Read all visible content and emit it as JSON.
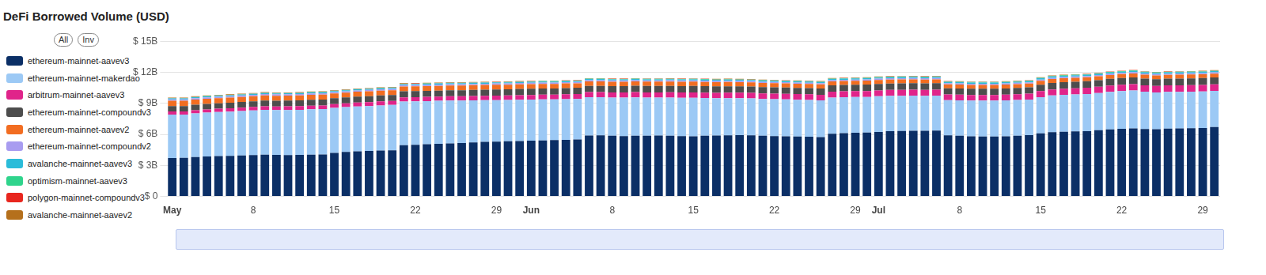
{
  "chart_data": {
    "type": "bar",
    "title": "DeFi Borrowed Volume (USD)",
    "stacked": true,
    "grid": true,
    "legend": "left",
    "categories": [
      "May",
      null,
      null,
      null,
      null,
      null,
      null,
      "8",
      null,
      null,
      null,
      null,
      null,
      null,
      "15",
      null,
      null,
      null,
      null,
      null,
      null,
      "22",
      null,
      null,
      null,
      null,
      null,
      null,
      "29",
      null,
      null,
      "Jun",
      null,
      null,
      null,
      null,
      null,
      null,
      "8",
      null,
      null,
      null,
      null,
      null,
      null,
      "15",
      null,
      null,
      null,
      null,
      null,
      null,
      "22",
      null,
      null,
      null,
      null,
      null,
      null,
      "29",
      null,
      "Jul",
      null,
      null,
      null,
      null,
      null,
      null,
      "8",
      null,
      null,
      null,
      null,
      null,
      null,
      "15",
      null,
      null,
      null,
      null,
      null,
      null,
      "22",
      null,
      null,
      null,
      null,
      null,
      null,
      "29",
      null
    ],
    "ylim": [
      0,
      15
    ],
    "yticks": [
      {
        "value": 0,
        "label": "$ 0"
      },
      {
        "value": 3,
        "label": "$ 3B"
      },
      {
        "value": 6,
        "label": "$ 6B"
      },
      {
        "value": 9,
        "label": "$ 9B"
      },
      {
        "value": 12,
        "label": "$ 12B"
      },
      {
        "value": 15,
        "label": "$ 15B"
      }
    ],
    "series": [
      {
        "name": "ethereum-mainnet-aavev3",
        "color": "#0b2f66",
        "values": [
          3.72,
          3.74,
          3.8,
          3.86,
          3.9,
          3.92,
          3.96,
          4.0,
          4.04,
          4.02,
          4.0,
          4.02,
          4.04,
          4.06,
          4.2,
          4.3,
          4.36,
          4.4,
          4.44,
          4.46,
          4.96,
          5.0,
          5.04,
          5.08,
          5.12,
          5.16,
          5.22,
          5.28,
          5.3,
          5.34,
          5.36,
          5.4,
          5.42,
          5.44,
          5.46,
          5.5,
          5.88,
          5.9,
          5.86,
          5.84,
          5.86,
          5.86,
          5.88,
          5.86,
          5.84,
          5.82,
          5.86,
          5.88,
          5.9,
          5.92,
          5.9,
          5.86,
          5.84,
          5.82,
          5.8,
          5.78,
          5.74,
          6.06,
          6.12,
          6.16,
          6.18,
          6.24,
          6.3,
          6.32,
          6.34,
          6.34,
          6.36,
          5.9,
          5.86,
          5.82,
          5.8,
          5.8,
          5.82,
          5.86,
          5.92,
          6.1,
          6.22,
          6.26,
          6.28,
          6.3,
          6.4,
          6.48,
          6.54,
          6.58,
          6.52,
          6.5,
          6.56,
          6.58,
          6.6,
          6.62,
          6.7
        ]
      },
      {
        "name": "ethereum-mainnet-makerdao",
        "color": "#9cc9f5",
        "values": [
          4.2,
          4.18,
          4.22,
          4.24,
          4.26,
          4.28,
          4.3,
          4.32,
          4.34,
          4.34,
          4.36,
          4.36,
          4.38,
          4.38,
          4.36,
          4.34,
          4.34,
          4.34,
          4.36,
          4.38,
          4.22,
          4.2,
          4.18,
          4.16,
          4.14,
          4.1,
          4.06,
          4.02,
          4.0,
          3.98,
          3.98,
          3.96,
          3.96,
          3.94,
          3.94,
          3.92,
          3.72,
          3.7,
          3.7,
          3.72,
          3.72,
          3.7,
          3.68,
          3.7,
          3.7,
          3.72,
          3.66,
          3.62,
          3.6,
          3.58,
          3.58,
          3.56,
          3.56,
          3.56,
          3.54,
          3.54,
          3.54,
          3.5,
          3.48,
          3.46,
          3.44,
          3.44,
          3.42,
          3.4,
          3.4,
          3.38,
          3.38,
          3.4,
          3.42,
          3.44,
          3.46,
          3.46,
          3.46,
          3.46,
          3.44,
          3.5,
          3.54,
          3.56,
          3.58,
          3.6,
          3.6,
          3.62,
          3.64,
          3.66,
          3.6,
          3.56,
          3.54,
          3.52,
          3.52,
          3.52,
          3.5
        ]
      },
      {
        "name": "arbitrum-mainnet-aavev3",
        "color": "#e0248a",
        "values": [
          0.3,
          0.3,
          0.31,
          0.31,
          0.32,
          0.32,
          0.33,
          0.33,
          0.34,
          0.34,
          0.35,
          0.35,
          0.36,
          0.36,
          0.37,
          0.37,
          0.38,
          0.38,
          0.39,
          0.39,
          0.4,
          0.4,
          0.41,
          0.41,
          0.42,
          0.42,
          0.43,
          0.43,
          0.44,
          0.44,
          0.45,
          0.45,
          0.46,
          0.46,
          0.47,
          0.47,
          0.48,
          0.48,
          0.49,
          0.49,
          0.5,
          0.5,
          0.5,
          0.51,
          0.51,
          0.52,
          0.52,
          0.52,
          0.53,
          0.53,
          0.53,
          0.54,
          0.54,
          0.54,
          0.55,
          0.55,
          0.55,
          0.56,
          0.56,
          0.56,
          0.57,
          0.57,
          0.57,
          0.58,
          0.58,
          0.58,
          0.58,
          0.56,
          0.56,
          0.55,
          0.55,
          0.55,
          0.56,
          0.56,
          0.57,
          0.58,
          0.58,
          0.59,
          0.59,
          0.6,
          0.6,
          0.61,
          0.61,
          0.62,
          0.62,
          0.62,
          0.63,
          0.63,
          0.63,
          0.64,
          0.64
        ]
      },
      {
        "name": "ethereum-mainnet-compoundv3",
        "color": "#4d4d4d",
        "values": [
          0.52,
          0.52,
          0.53,
          0.53,
          0.53,
          0.54,
          0.54,
          0.54,
          0.55,
          0.55,
          0.55,
          0.55,
          0.56,
          0.56,
          0.56,
          0.56,
          0.57,
          0.57,
          0.57,
          0.57,
          0.58,
          0.58,
          0.58,
          0.58,
          0.59,
          0.59,
          0.59,
          0.59,
          0.6,
          0.6,
          0.6,
          0.6,
          0.6,
          0.6,
          0.61,
          0.61,
          0.61,
          0.61,
          0.61,
          0.61,
          0.62,
          0.62,
          0.62,
          0.62,
          0.62,
          0.62,
          0.62,
          0.62,
          0.62,
          0.61,
          0.61,
          0.61,
          0.61,
          0.6,
          0.6,
          0.6,
          0.6,
          0.61,
          0.61,
          0.61,
          0.62,
          0.62,
          0.62,
          0.62,
          0.62,
          0.62,
          0.62,
          0.6,
          0.6,
          0.6,
          0.6,
          0.6,
          0.6,
          0.61,
          0.61,
          0.62,
          0.63,
          0.63,
          0.64,
          0.64,
          0.64,
          0.65,
          0.65,
          0.65,
          0.65,
          0.65,
          0.65,
          0.66,
          0.66,
          0.66,
          0.66
        ]
      },
      {
        "name": "ethereum-mainnet-aavev2",
        "color": "#f26d21",
        "values": [
          0.5,
          0.5,
          0.5,
          0.5,
          0.49,
          0.49,
          0.49,
          0.49,
          0.49,
          0.48,
          0.48,
          0.48,
          0.48,
          0.48,
          0.47,
          0.47,
          0.47,
          0.47,
          0.47,
          0.46,
          0.46,
          0.46,
          0.46,
          0.46,
          0.45,
          0.45,
          0.45,
          0.45,
          0.45,
          0.44,
          0.44,
          0.44,
          0.44,
          0.44,
          0.44,
          0.43,
          0.43,
          0.43,
          0.43,
          0.43,
          0.42,
          0.42,
          0.42,
          0.42,
          0.42,
          0.42,
          0.41,
          0.41,
          0.41,
          0.41,
          0.41,
          0.4,
          0.4,
          0.4,
          0.4,
          0.4,
          0.4,
          0.39,
          0.39,
          0.39,
          0.39,
          0.39,
          0.39,
          0.39,
          0.38,
          0.38,
          0.38,
          0.37,
          0.37,
          0.37,
          0.37,
          0.37,
          0.37,
          0.37,
          0.37,
          0.38,
          0.38,
          0.38,
          0.38,
          0.38,
          0.38,
          0.38,
          0.38,
          0.38,
          0.37,
          0.37,
          0.37,
          0.37,
          0.37,
          0.37,
          0.37
        ]
      },
      {
        "name": "ethereum-mainnet-compoundv2",
        "color": "#a89cf0",
        "values": [
          0.14,
          0.14,
          0.14,
          0.14,
          0.14,
          0.14,
          0.14,
          0.14,
          0.14,
          0.14,
          0.14,
          0.14,
          0.14,
          0.14,
          0.13,
          0.13,
          0.13,
          0.13,
          0.13,
          0.13,
          0.13,
          0.13,
          0.13,
          0.13,
          0.13,
          0.13,
          0.13,
          0.13,
          0.13,
          0.13,
          0.13,
          0.13,
          0.13,
          0.13,
          0.13,
          0.13,
          0.12,
          0.12,
          0.12,
          0.12,
          0.12,
          0.12,
          0.12,
          0.12,
          0.12,
          0.12,
          0.12,
          0.12,
          0.12,
          0.12,
          0.12,
          0.12,
          0.12,
          0.12,
          0.12,
          0.12,
          0.12,
          0.12,
          0.12,
          0.12,
          0.12,
          0.12,
          0.12,
          0.12,
          0.12,
          0.12,
          0.12,
          0.12,
          0.12,
          0.12,
          0.12,
          0.12,
          0.12,
          0.12,
          0.12,
          0.12,
          0.12,
          0.12,
          0.12,
          0.12,
          0.12,
          0.12,
          0.12,
          0.12,
          0.12,
          0.12,
          0.12,
          0.12,
          0.12,
          0.12,
          0.12
        ]
      },
      {
        "name": "avalanche-mainnet-aavev3",
        "color": "#2bbcd9",
        "values": [
          0.09,
          0.09,
          0.09,
          0.09,
          0.09,
          0.09,
          0.09,
          0.09,
          0.09,
          0.09,
          0.09,
          0.09,
          0.09,
          0.09,
          0.1,
          0.1,
          0.1,
          0.1,
          0.1,
          0.1,
          0.1,
          0.1,
          0.1,
          0.1,
          0.1,
          0.1,
          0.1,
          0.1,
          0.1,
          0.1,
          0.1,
          0.1,
          0.1,
          0.1,
          0.1,
          0.1,
          0.1,
          0.1,
          0.1,
          0.1,
          0.1,
          0.1,
          0.1,
          0.1,
          0.1,
          0.1,
          0.11,
          0.11,
          0.11,
          0.11,
          0.11,
          0.11,
          0.11,
          0.11,
          0.11,
          0.11,
          0.11,
          0.11,
          0.11,
          0.11,
          0.11,
          0.11,
          0.11,
          0.11,
          0.11,
          0.11,
          0.11,
          0.11,
          0.11,
          0.11,
          0.11,
          0.11,
          0.11,
          0.11,
          0.11,
          0.12,
          0.12,
          0.12,
          0.12,
          0.12,
          0.12,
          0.12,
          0.12,
          0.12,
          0.12,
          0.12,
          0.12,
          0.12,
          0.12,
          0.12,
          0.12
        ]
      },
      {
        "name": "optimism-mainnet-aavev3",
        "color": "#2fd48c",
        "values": [
          0.03,
          0.03,
          0.03,
          0.03,
          0.03,
          0.03,
          0.03,
          0.03,
          0.03,
          0.03,
          0.03,
          0.03,
          0.03,
          0.03,
          0.03,
          0.03,
          0.03,
          0.03,
          0.03,
          0.03,
          0.03,
          0.03,
          0.03,
          0.03,
          0.03,
          0.03,
          0.03,
          0.03,
          0.03,
          0.03,
          0.03,
          0.04,
          0.04,
          0.04,
          0.04,
          0.04,
          0.04,
          0.04,
          0.04,
          0.04,
          0.04,
          0.04,
          0.04,
          0.04,
          0.04,
          0.04,
          0.04,
          0.04,
          0.04,
          0.04,
          0.04,
          0.04,
          0.04,
          0.04,
          0.04,
          0.04,
          0.04,
          0.04,
          0.04,
          0.04,
          0.04,
          0.05,
          0.05,
          0.05,
          0.05,
          0.05,
          0.05,
          0.05,
          0.05,
          0.05,
          0.05,
          0.05,
          0.05,
          0.05,
          0.05,
          0.05,
          0.05,
          0.05,
          0.05,
          0.05,
          0.05,
          0.05,
          0.05,
          0.05,
          0.05,
          0.05,
          0.05,
          0.05,
          0.05,
          0.05,
          0.05
        ]
      },
      {
        "name": "polygon-mainnet-compoundv3",
        "color": "#e8261e",
        "values": [
          0.02,
          0.02,
          0.02,
          0.02,
          0.02,
          0.02,
          0.02,
          0.02,
          0.02,
          0.02,
          0.02,
          0.02,
          0.02,
          0.02,
          0.02,
          0.02,
          0.02,
          0.02,
          0.02,
          0.02,
          0.02,
          0.02,
          0.02,
          0.02,
          0.02,
          0.02,
          0.02,
          0.02,
          0.02,
          0.02,
          0.02,
          0.02,
          0.02,
          0.02,
          0.02,
          0.02,
          0.02,
          0.02,
          0.02,
          0.02,
          0.02,
          0.02,
          0.02,
          0.02,
          0.02,
          0.02,
          0.02,
          0.02,
          0.02,
          0.02,
          0.02,
          0.02,
          0.02,
          0.02,
          0.02,
          0.02,
          0.02,
          0.02,
          0.02,
          0.02,
          0.02,
          0.02,
          0.02,
          0.02,
          0.02,
          0.02,
          0.02,
          0.02,
          0.02,
          0.02,
          0.02,
          0.02,
          0.02,
          0.02,
          0.02,
          0.02,
          0.02,
          0.02,
          0.02,
          0.02,
          0.02,
          0.02,
          0.02,
          0.02,
          0.02,
          0.02,
          0.02,
          0.02,
          0.02,
          0.02,
          0.02
        ]
      },
      {
        "name": "avalanche-mainnet-aavev2",
        "color": "#b5701c",
        "values": [
          0.04,
          0.04,
          0.04,
          0.04,
          0.04,
          0.04,
          0.04,
          0.04,
          0.04,
          0.04,
          0.04,
          0.04,
          0.04,
          0.04,
          0.04,
          0.04,
          0.04,
          0.04,
          0.04,
          0.04,
          0.04,
          0.04,
          0.04,
          0.04,
          0.04,
          0.04,
          0.04,
          0.04,
          0.04,
          0.04,
          0.04,
          0.03,
          0.03,
          0.03,
          0.03,
          0.03,
          0.03,
          0.03,
          0.03,
          0.03,
          0.03,
          0.03,
          0.03,
          0.03,
          0.03,
          0.03,
          0.03,
          0.03,
          0.03,
          0.03,
          0.03,
          0.03,
          0.03,
          0.03,
          0.03,
          0.03,
          0.03,
          0.03,
          0.03,
          0.03,
          0.03,
          0.03,
          0.03,
          0.03,
          0.03,
          0.03,
          0.03,
          0.03,
          0.03,
          0.03,
          0.03,
          0.03,
          0.03,
          0.03,
          0.03,
          0.03,
          0.03,
          0.03,
          0.03,
          0.03,
          0.03,
          0.03,
          0.03,
          0.03,
          0.03,
          0.03,
          0.03,
          0.03,
          0.03,
          0.03,
          0.03
        ]
      }
    ]
  },
  "controls": {
    "buttons": [
      "All",
      "Inv"
    ]
  }
}
